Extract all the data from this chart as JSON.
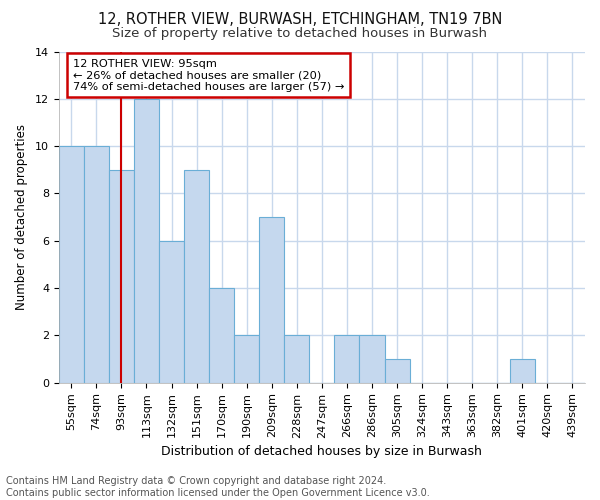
{
  "title1": "12, ROTHER VIEW, BURWASH, ETCHINGHAM, TN19 7BN",
  "title2": "Size of property relative to detached houses in Burwash",
  "xlabel": "Distribution of detached houses by size in Burwash",
  "ylabel": "Number of detached properties",
  "categories": [
    "55sqm",
    "74sqm",
    "93sqm",
    "113sqm",
    "132sqm",
    "151sqm",
    "170sqm",
    "190sqm",
    "209sqm",
    "228sqm",
    "247sqm",
    "266sqm",
    "286sqm",
    "305sqm",
    "324sqm",
    "343sqm",
    "363sqm",
    "382sqm",
    "401sqm",
    "420sqm",
    "439sqm"
  ],
  "values": [
    10,
    10,
    9,
    12,
    6,
    9,
    4,
    2,
    7,
    2,
    0,
    2,
    2,
    1,
    0,
    0,
    0,
    0,
    1,
    0,
    0
  ],
  "bar_color": "#c5d8ee",
  "bar_edge_color": "#6aaed6",
  "highlight_index": 2,
  "highlight_line_color": "#cc0000",
  "annotation_text": "12 ROTHER VIEW: 95sqm\n← 26% of detached houses are smaller (20)\n74% of semi-detached houses are larger (57) →",
  "annotation_box_color": "#ffffff",
  "annotation_box_edge_color": "#cc0000",
  "ylim": [
    0,
    14
  ],
  "yticks": [
    0,
    2,
    4,
    6,
    8,
    10,
    12,
    14
  ],
  "footer_text": "Contains HM Land Registry data © Crown copyright and database right 2024.\nContains public sector information licensed under the Open Government Licence v3.0.",
  "bg_color": "#ffffff",
  "grid_color": "#c8d8ec",
  "title1_fontsize": 10.5,
  "title2_fontsize": 9.5,
  "xlabel_fontsize": 9,
  "ylabel_fontsize": 8.5,
  "footer_fontsize": 7,
  "tick_fontsize": 8
}
